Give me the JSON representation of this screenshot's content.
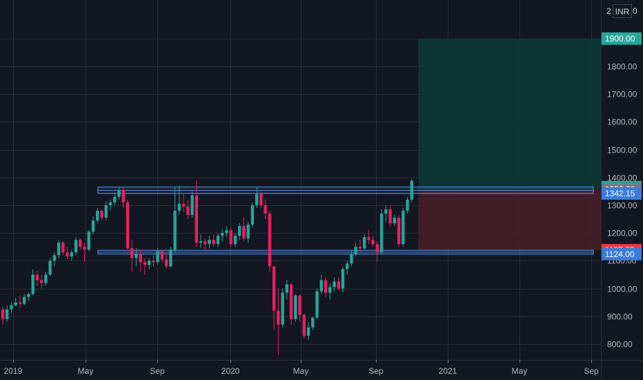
{
  "header": {
    "currency": "INR",
    "scale_left": "2",
    "scale_right": "0"
  },
  "colors": {
    "background": "#131722",
    "grid": "#262b38",
    "up": "#26a69a",
    "down": "#ef5350",
    "down_candle": "#e91e63",
    "zone": "#5b9cf6",
    "target_fill": "#0d3b3a",
    "stop_fill": "#4a1f27"
  },
  "chart_data": {
    "type": "candlestick",
    "x_tick_labels": [
      "2019",
      "May",
      "Sep",
      "2020",
      "May",
      "Sep",
      "2021",
      "May",
      "Sep"
    ],
    "y_ticks": [
      "800.00",
      "900.00",
      "1000.00",
      "1100.00",
      "1200.00",
      "1300.00",
      "1400.00",
      "1500.00",
      "1600.00",
      "1700.00",
      "1800.00",
      "1900.00"
    ],
    "ylim": [
      760,
      2050
    ],
    "price_tags": [
      {
        "label": "1900.00",
        "value": 1900,
        "color": "#26a69a"
      },
      {
        "label": "1365.15",
        "value": 1365.15,
        "color": "#26a69a"
      },
      {
        "label": "1356.60",
        "value": 1356.6,
        "color": "#787b86"
      },
      {
        "label": "1342.15",
        "value": 1342.15,
        "color": "#3d7bd9"
      },
      {
        "label": "1137.85",
        "value": 1137.85,
        "color": "#f23645"
      },
      {
        "label": "1124.00",
        "value": 1124,
        "color": "#3d7bd9"
      }
    ],
    "zones": [
      {
        "name": "resistance",
        "low": 1342.15,
        "high": 1365.15
      },
      {
        "name": "support",
        "low": 1124,
        "high": 1137.85
      }
    ],
    "position": {
      "entry": 1356.6,
      "target": 1900,
      "stop": 1137.85,
      "start_week": 97
    },
    "candles": [
      {
        "o": 925,
        "h": 935,
        "l": 870,
        "c": 890
      },
      {
        "o": 890,
        "h": 940,
        "l": 880,
        "c": 925
      },
      {
        "o": 925,
        "h": 950,
        "l": 910,
        "c": 940
      },
      {
        "o": 940,
        "h": 965,
        "l": 935,
        "c": 950
      },
      {
        "o": 950,
        "h": 975,
        "l": 930,
        "c": 945
      },
      {
        "o": 945,
        "h": 980,
        "l": 940,
        "c": 970
      },
      {
        "o": 970,
        "h": 985,
        "l": 955,
        "c": 980
      },
      {
        "o": 980,
        "h": 1070,
        "l": 975,
        "c": 1050
      },
      {
        "o": 1050,
        "h": 1065,
        "l": 1010,
        "c": 1030
      },
      {
        "o": 1030,
        "h": 1050,
        "l": 1000,
        "c": 1020
      },
      {
        "o": 1020,
        "h": 1060,
        "l": 1010,
        "c": 1050
      },
      {
        "o": 1050,
        "h": 1110,
        "l": 1045,
        "c": 1100
      },
      {
        "o": 1100,
        "h": 1130,
        "l": 1080,
        "c": 1120
      },
      {
        "o": 1120,
        "h": 1175,
        "l": 1110,
        "c": 1165
      },
      {
        "o": 1165,
        "h": 1170,
        "l": 1120,
        "c": 1130
      },
      {
        "o": 1130,
        "h": 1150,
        "l": 1105,
        "c": 1115
      },
      {
        "o": 1115,
        "h": 1140,
        "l": 1100,
        "c": 1130
      },
      {
        "o": 1130,
        "h": 1185,
        "l": 1120,
        "c": 1175
      },
      {
        "o": 1175,
        "h": 1180,
        "l": 1140,
        "c": 1150
      },
      {
        "o": 1150,
        "h": 1165,
        "l": 1095,
        "c": 1140
      },
      {
        "o": 1140,
        "h": 1210,
        "l": 1135,
        "c": 1205
      },
      {
        "o": 1205,
        "h": 1260,
        "l": 1195,
        "c": 1245
      },
      {
        "o": 1245,
        "h": 1290,
        "l": 1235,
        "c": 1280
      },
      {
        "o": 1280,
        "h": 1285,
        "l": 1245,
        "c": 1255
      },
      {
        "o": 1255,
        "h": 1315,
        "l": 1245,
        "c": 1300
      },
      {
        "o": 1300,
        "h": 1320,
        "l": 1280,
        "c": 1310
      },
      {
        "o": 1310,
        "h": 1345,
        "l": 1300,
        "c": 1330
      },
      {
        "o": 1330,
        "h": 1365,
        "l": 1320,
        "c": 1355
      },
      {
        "o": 1355,
        "h": 1365,
        "l": 1290,
        "c": 1310
      },
      {
        "o": 1310,
        "h": 1320,
        "l": 1140,
        "c": 1145
      },
      {
        "o": 1145,
        "h": 1175,
        "l": 1060,
        "c": 1110
      },
      {
        "o": 1110,
        "h": 1145,
        "l": 1080,
        "c": 1125
      },
      {
        "o": 1125,
        "h": 1140,
        "l": 1060,
        "c": 1095
      },
      {
        "o": 1095,
        "h": 1110,
        "l": 1050,
        "c": 1085
      },
      {
        "o": 1085,
        "h": 1110,
        "l": 1070,
        "c": 1100
      },
      {
        "o": 1100,
        "h": 1120,
        "l": 1080,
        "c": 1095
      },
      {
        "o": 1095,
        "h": 1145,
        "l": 1085,
        "c": 1135
      },
      {
        "o": 1135,
        "h": 1140,
        "l": 1095,
        "c": 1105
      },
      {
        "o": 1105,
        "h": 1125,
        "l": 1070,
        "c": 1080
      },
      {
        "o": 1080,
        "h": 1150,
        "l": 1075,
        "c": 1140
      },
      {
        "o": 1140,
        "h": 1365,
        "l": 1130,
        "c": 1280
      },
      {
        "o": 1280,
        "h": 1370,
        "l": 1265,
        "c": 1305
      },
      {
        "o": 1305,
        "h": 1340,
        "l": 1275,
        "c": 1295
      },
      {
        "o": 1295,
        "h": 1320,
        "l": 1250,
        "c": 1265
      },
      {
        "o": 1265,
        "h": 1350,
        "l": 1255,
        "c": 1335
      },
      {
        "o": 1335,
        "h": 1390,
        "l": 1150,
        "c": 1165
      },
      {
        "o": 1165,
        "h": 1195,
        "l": 1145,
        "c": 1170
      },
      {
        "o": 1170,
        "h": 1180,
        "l": 1140,
        "c": 1160
      },
      {
        "o": 1160,
        "h": 1190,
        "l": 1145,
        "c": 1175
      },
      {
        "o": 1175,
        "h": 1195,
        "l": 1150,
        "c": 1160
      },
      {
        "o": 1160,
        "h": 1200,
        "l": 1150,
        "c": 1190
      },
      {
        "o": 1190,
        "h": 1215,
        "l": 1170,
        "c": 1200
      },
      {
        "o": 1200,
        "h": 1225,
        "l": 1185,
        "c": 1210
      },
      {
        "o": 1210,
        "h": 1220,
        "l": 1150,
        "c": 1160
      },
      {
        "o": 1160,
        "h": 1200,
        "l": 1150,
        "c": 1190
      },
      {
        "o": 1190,
        "h": 1235,
        "l": 1175,
        "c": 1225
      },
      {
        "o": 1225,
        "h": 1255,
        "l": 1170,
        "c": 1180
      },
      {
        "o": 1180,
        "h": 1240,
        "l": 1165,
        "c": 1230
      },
      {
        "o": 1230,
        "h": 1310,
        "l": 1220,
        "c": 1300
      },
      {
        "o": 1300,
        "h": 1365,
        "l": 1290,
        "c": 1340
      },
      {
        "o": 1340,
        "h": 1350,
        "l": 1290,
        "c": 1300
      },
      {
        "o": 1300,
        "h": 1320,
        "l": 1250,
        "c": 1270
      },
      {
        "o": 1270,
        "h": 1280,
        "l": 1060,
        "c": 1080
      },
      {
        "o": 1080,
        "h": 1080,
        "l": 850,
        "c": 920
      },
      {
        "o": 920,
        "h": 1000,
        "l": 760,
        "c": 870
      },
      {
        "o": 870,
        "h": 1000,
        "l": 860,
        "c": 985
      },
      {
        "o": 985,
        "h": 1030,
        "l": 960,
        "c": 1015
      },
      {
        "o": 1015,
        "h": 1020,
        "l": 870,
        "c": 890
      },
      {
        "o": 890,
        "h": 980,
        "l": 880,
        "c": 975
      },
      {
        "o": 975,
        "h": 980,
        "l": 880,
        "c": 905
      },
      {
        "o": 905,
        "h": 910,
        "l": 820,
        "c": 830
      },
      {
        "o": 830,
        "h": 880,
        "l": 815,
        "c": 860
      },
      {
        "o": 860,
        "h": 900,
        "l": 850,
        "c": 895
      },
      {
        "o": 895,
        "h": 1000,
        "l": 890,
        "c": 990
      },
      {
        "o": 990,
        "h": 1050,
        "l": 980,
        "c": 1030
      },
      {
        "o": 1030,
        "h": 1040,
        "l": 970,
        "c": 985
      },
      {
        "o": 985,
        "h": 1020,
        "l": 960,
        "c": 1005
      },
      {
        "o": 1005,
        "h": 1040,
        "l": 990,
        "c": 1025
      },
      {
        "o": 1025,
        "h": 1040,
        "l": 995,
        "c": 1000
      },
      {
        "o": 1000,
        "h": 1080,
        "l": 985,
        "c": 1070
      },
      {
        "o": 1070,
        "h": 1100,
        "l": 1050,
        "c": 1090
      },
      {
        "o": 1090,
        "h": 1135,
        "l": 1080,
        "c": 1125
      },
      {
        "o": 1125,
        "h": 1165,
        "l": 1115,
        "c": 1150
      },
      {
        "o": 1150,
        "h": 1175,
        "l": 1130,
        "c": 1145
      },
      {
        "o": 1145,
        "h": 1195,
        "l": 1140,
        "c": 1185
      },
      {
        "o": 1185,
        "h": 1210,
        "l": 1160,
        "c": 1175
      },
      {
        "o": 1175,
        "h": 1190,
        "l": 1150,
        "c": 1160
      },
      {
        "o": 1160,
        "h": 1170,
        "l": 1095,
        "c": 1130
      },
      {
        "o": 1130,
        "h": 1285,
        "l": 1125,
        "c": 1270
      },
      {
        "o": 1270,
        "h": 1300,
        "l": 1240,
        "c": 1285
      },
      {
        "o": 1285,
        "h": 1300,
        "l": 1220,
        "c": 1235
      },
      {
        "o": 1235,
        "h": 1265,
        "l": 1225,
        "c": 1255
      },
      {
        "o": 1255,
        "h": 1265,
        "l": 1150,
        "c": 1160
      },
      {
        "o": 1160,
        "h": 1290,
        "l": 1150,
        "c": 1280
      },
      {
        "o": 1280,
        "h": 1330,
        "l": 1270,
        "c": 1320
      },
      {
        "o": 1320,
        "h": 1395,
        "l": 1310,
        "c": 1388
      }
    ]
  }
}
